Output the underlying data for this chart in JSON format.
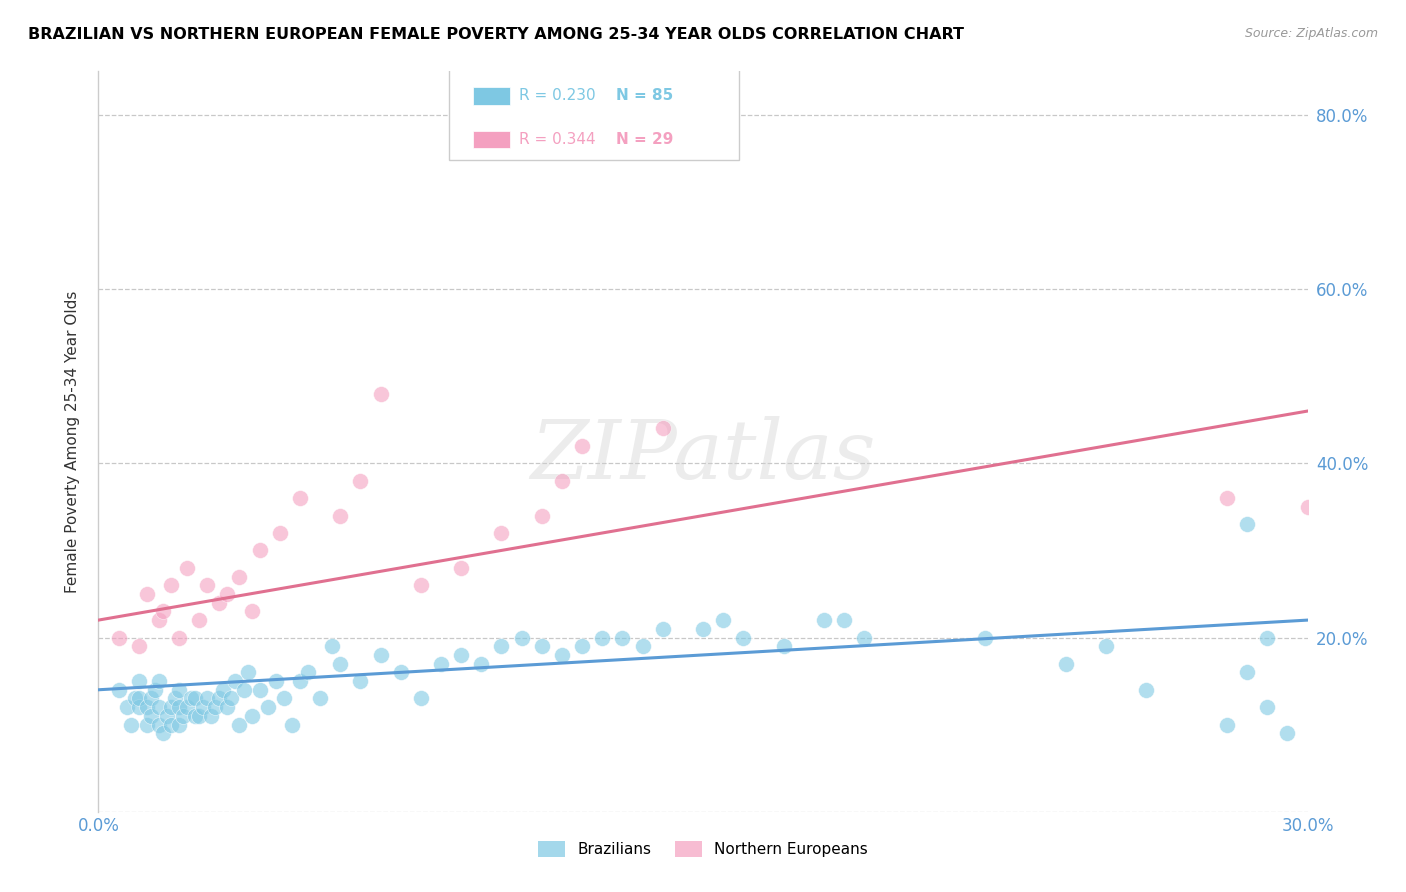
{
  "title": "BRAZILIAN VS NORTHERN EUROPEAN FEMALE POVERTY AMONG 25-34 YEAR OLDS CORRELATION CHART",
  "source": "Source: ZipAtlas.com",
  "ylabel": "Female Poverty Among 25-34 Year Olds",
  "xmin": 0.0,
  "xmax": 0.3,
  "ymin": 0.0,
  "ymax": 0.85,
  "yticks": [
    0.0,
    0.2,
    0.4,
    0.6,
    0.8
  ],
  "ytick_labels": [
    "",
    "20.0%",
    "40.0%",
    "60.0%",
    "80.0%"
  ],
  "xticks": [
    0.0,
    0.05,
    0.1,
    0.15,
    0.2,
    0.25,
    0.3
  ],
  "xtick_labels": [
    "0.0%",
    "",
    "",
    "",
    "",
    "",
    "30.0%"
  ],
  "blue_R": "0.230",
  "blue_N": "85",
  "pink_R": "0.344",
  "pink_N": "29",
  "blue_color": "#7ec8e3",
  "pink_color": "#f4a0c0",
  "blue_line_color": "#5b9bd5",
  "pink_line_color": "#e07090",
  "axis_color": "#5b9bd5",
  "grid_color": "#c8c8c8",
  "watermark": "ZIPatlas",
  "blue_scatter_x": [
    0.005,
    0.007,
    0.008,
    0.009,
    0.01,
    0.01,
    0.01,
    0.012,
    0.012,
    0.013,
    0.013,
    0.014,
    0.015,
    0.015,
    0.015,
    0.016,
    0.017,
    0.018,
    0.018,
    0.019,
    0.02,
    0.02,
    0.02,
    0.021,
    0.022,
    0.023,
    0.024,
    0.024,
    0.025,
    0.026,
    0.027,
    0.028,
    0.029,
    0.03,
    0.031,
    0.032,
    0.033,
    0.034,
    0.035,
    0.036,
    0.037,
    0.038,
    0.04,
    0.042,
    0.044,
    0.046,
    0.048,
    0.05,
    0.052,
    0.055,
    0.058,
    0.06,
    0.065,
    0.07,
    0.075,
    0.08,
    0.085,
    0.09,
    0.095,
    0.1,
    0.105,
    0.11,
    0.115,
    0.12,
    0.125,
    0.13,
    0.135,
    0.14,
    0.15,
    0.155,
    0.16,
    0.17,
    0.18,
    0.185,
    0.19,
    0.22,
    0.24,
    0.25,
    0.26,
    0.285,
    0.28,
    0.285,
    0.29,
    0.29,
    0.295
  ],
  "blue_scatter_y": [
    0.14,
    0.12,
    0.1,
    0.13,
    0.12,
    0.13,
    0.15,
    0.1,
    0.12,
    0.11,
    0.13,
    0.14,
    0.1,
    0.12,
    0.15,
    0.09,
    0.11,
    0.1,
    0.12,
    0.13,
    0.1,
    0.12,
    0.14,
    0.11,
    0.12,
    0.13,
    0.11,
    0.13,
    0.11,
    0.12,
    0.13,
    0.11,
    0.12,
    0.13,
    0.14,
    0.12,
    0.13,
    0.15,
    0.1,
    0.14,
    0.16,
    0.11,
    0.14,
    0.12,
    0.15,
    0.13,
    0.1,
    0.15,
    0.16,
    0.13,
    0.19,
    0.17,
    0.15,
    0.18,
    0.16,
    0.13,
    0.17,
    0.18,
    0.17,
    0.19,
    0.2,
    0.19,
    0.18,
    0.19,
    0.2,
    0.2,
    0.19,
    0.21,
    0.21,
    0.22,
    0.2,
    0.19,
    0.22,
    0.22,
    0.2,
    0.2,
    0.17,
    0.19,
    0.14,
    0.33,
    0.1,
    0.16,
    0.2,
    0.12,
    0.09
  ],
  "pink_scatter_x": [
    0.005,
    0.01,
    0.012,
    0.015,
    0.016,
    0.018,
    0.02,
    0.022,
    0.025,
    0.027,
    0.03,
    0.032,
    0.035,
    0.038,
    0.04,
    0.045,
    0.05,
    0.06,
    0.065,
    0.07,
    0.08,
    0.09,
    0.1,
    0.11,
    0.115,
    0.12,
    0.14,
    0.28,
    0.3
  ],
  "pink_scatter_y": [
    0.2,
    0.19,
    0.25,
    0.22,
    0.23,
    0.26,
    0.2,
    0.28,
    0.22,
    0.26,
    0.24,
    0.25,
    0.27,
    0.23,
    0.3,
    0.32,
    0.36,
    0.34,
    0.38,
    0.48,
    0.26,
    0.28,
    0.32,
    0.34,
    0.38,
    0.42,
    0.44,
    0.36,
    0.35
  ],
  "blue_trend_x": [
    0.0,
    0.3
  ],
  "blue_trend_y": [
    0.14,
    0.22
  ],
  "pink_trend_x": [
    0.0,
    0.3
  ],
  "pink_trend_y": [
    0.22,
    0.46
  ]
}
